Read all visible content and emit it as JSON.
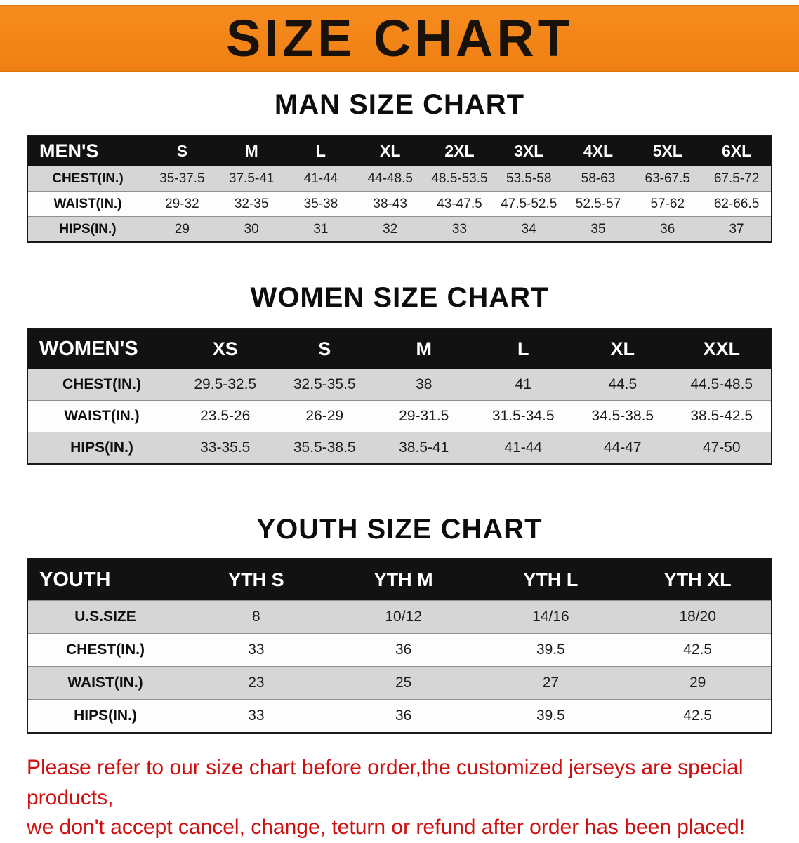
{
  "banner": {
    "title": "SIZE CHART",
    "bg_color": "#f5831c",
    "text_color": "#18120b"
  },
  "sections": [
    {
      "heading": "MAN SIZE CHART",
      "table": {
        "header": [
          "MEN'S",
          "S",
          "M",
          "L",
          "XL",
          "2XL",
          "3XL",
          "4XL",
          "5XL",
          "6XL"
        ],
        "rows": [
          [
            "CHEST(IN.)",
            "35-37.5",
            "37.5-41",
            "41-44",
            "44-48.5",
            "48.5-53.5",
            "53.5-58",
            "58-63",
            "63-67.5",
            "67.5-72"
          ],
          [
            "WAIST(IN.)",
            "29-32",
            "32-35",
            "35-38",
            "38-43",
            "43-47.5",
            "47.5-52.5",
            "52.5-57",
            "57-62",
            "62-66.5"
          ],
          [
            "HIPS(IN.)",
            "29",
            "30",
            "31",
            "32",
            "33",
            "34",
            "35",
            "36",
            "37"
          ]
        ]
      }
    },
    {
      "heading": "WOMEN SIZE CHART",
      "table": {
        "header": [
          "WOMEN'S",
          "XS",
          "S",
          "M",
          "L",
          "XL",
          "XXL"
        ],
        "rows": [
          [
            "CHEST(IN.)",
            "29.5-32.5",
            "32.5-35.5",
            "38",
            "41",
            "44.5",
            "44.5-48.5"
          ],
          [
            "WAIST(IN.)",
            "23.5-26",
            "26-29",
            "29-31.5",
            "31.5-34.5",
            "34.5-38.5",
            "38.5-42.5"
          ],
          [
            "HIPS(IN.)",
            "33-35.5",
            "35.5-38.5",
            "38.5-41",
            "41-44",
            "44-47",
            "47-50"
          ]
        ]
      }
    },
    {
      "heading": "YOUTH SIZE CHART",
      "table": {
        "header": [
          "YOUTH",
          "YTH S",
          "YTH M",
          "YTH L",
          "YTH XL"
        ],
        "rows": [
          [
            "U.S.SIZE",
            "8",
            "10/12",
            "14/16",
            "18/20"
          ],
          [
            "CHEST(IN.)",
            "33",
            "36",
            "39.5",
            "42.5"
          ],
          [
            "WAIST(IN.)",
            "23",
            "25",
            "27",
            "29"
          ],
          [
            "HIPS(IN.)",
            "33",
            "36",
            "39.5",
            "42.5"
          ]
        ]
      }
    }
  ],
  "disclaimer": {
    "line1": "Please refer to our size chart before order,the customized jerseys are special products,",
    "line2": "we don't accept cancel, change, teturn or refund after order has been placed!",
    "color": "#ce1010"
  }
}
